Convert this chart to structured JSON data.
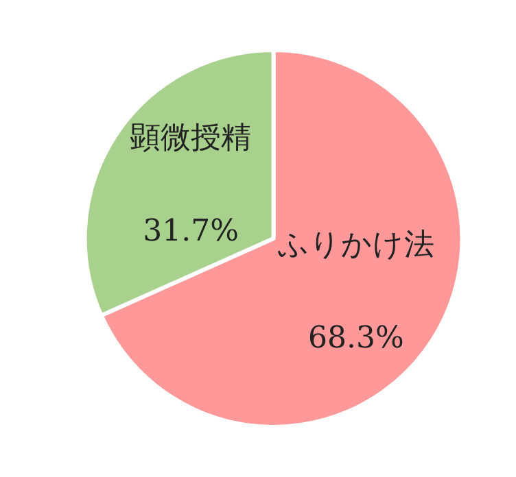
{
  "chart_data": {
    "type": "pie",
    "categories": [
      "ふりかけ法",
      "顕微授精"
    ],
    "values": [
      68.3,
      31.7
    ],
    "colors": [
      "#ff9999",
      "#a9d18e"
    ],
    "value_labels": [
      "68.3%",
      "31.7%"
    ],
    "legend": false
  }
}
